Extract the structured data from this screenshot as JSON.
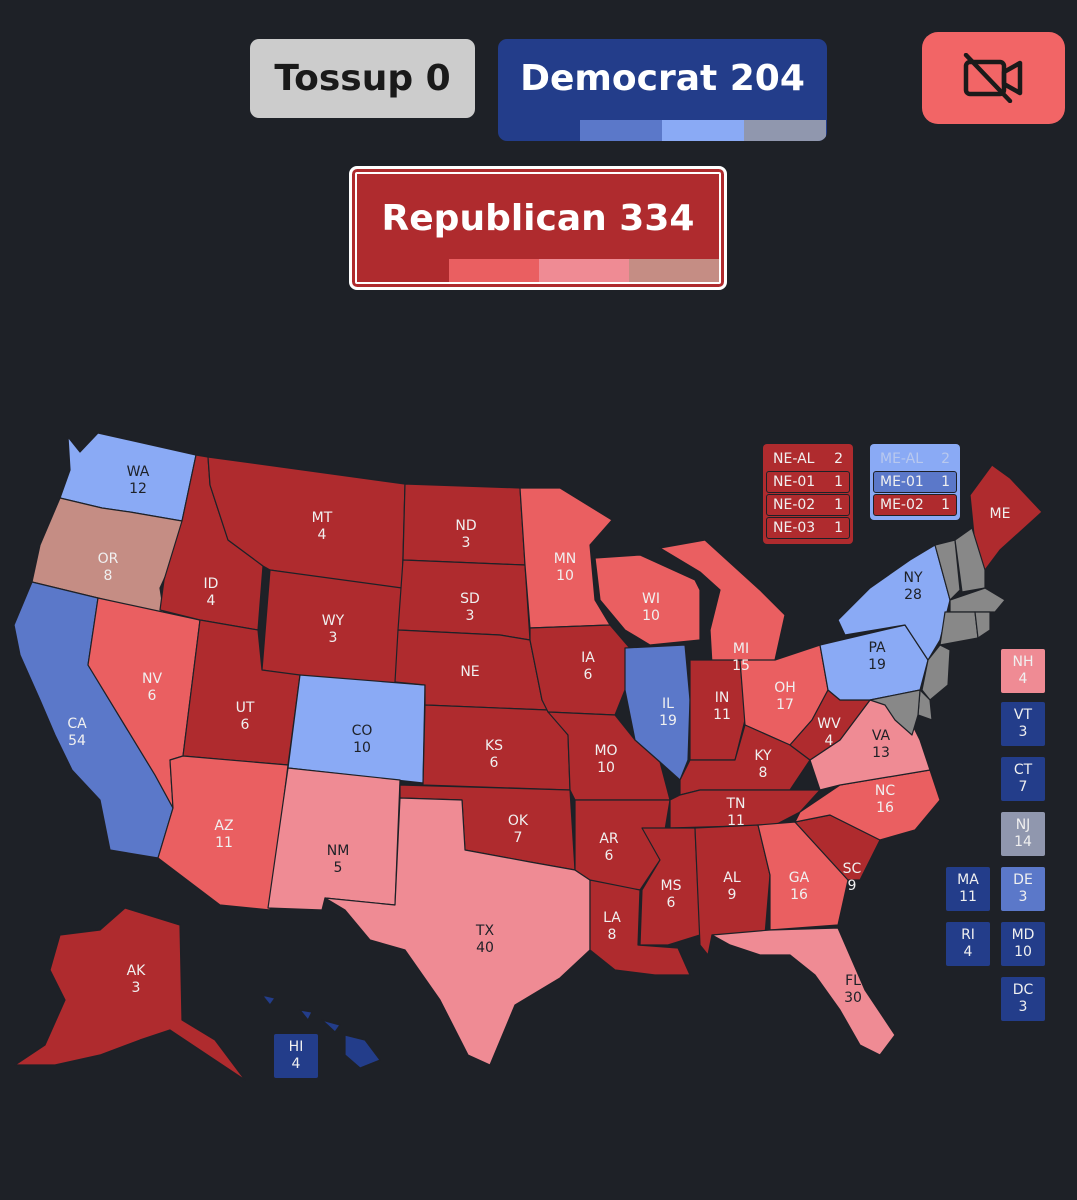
{
  "header": {
    "tossup_label": "Tossup 0",
    "democrat_label": "Democrat 204",
    "republican_label": "Republican 334",
    "camera_icon": "camera-off-icon"
  },
  "colors": {
    "background": "#1e2127",
    "tossup": "#cccccc",
    "safe_d": "#233d8a",
    "likely_d": "#5b78c9",
    "lean_d": "#8aaaf5",
    "tilt_d": "#9097ae",
    "safe_r": "#af2b2e",
    "likely_r": "#ea5f61",
    "lean_r": "#ef8b94",
    "tilt_r": "#c58d84",
    "tossup_state": "#9ca3ae"
  },
  "states": {
    "WA": {
      "label": "WA",
      "ev": "12",
      "rating": "lean_d"
    },
    "OR": {
      "label": "OR",
      "ev": "8",
      "rating": "tilt_r"
    },
    "CA": {
      "label": "CA",
      "ev": "54",
      "rating": "likely_d"
    },
    "NV": {
      "label": "NV",
      "ev": "6",
      "rating": "likely_r"
    },
    "ID": {
      "label": "ID",
      "ev": "4",
      "rating": "safe_r"
    },
    "MT": {
      "label": "MT",
      "ev": "4",
      "rating": "safe_r"
    },
    "WY": {
      "label": "WY",
      "ev": "3",
      "rating": "safe_r"
    },
    "UT": {
      "label": "UT",
      "ev": "6",
      "rating": "safe_r"
    },
    "AZ": {
      "label": "AZ",
      "ev": "11",
      "rating": "likely_r"
    },
    "CO": {
      "label": "CO",
      "ev": "10",
      "rating": "lean_d"
    },
    "NM": {
      "label": "NM",
      "ev": "5",
      "rating": "lean_r"
    },
    "ND": {
      "label": "ND",
      "ev": "3",
      "rating": "safe_r"
    },
    "SD": {
      "label": "SD",
      "ev": "3",
      "rating": "safe_r"
    },
    "NE": {
      "label": "NE",
      "ev": "",
      "rating": "safe_r"
    },
    "KS": {
      "label": "KS",
      "ev": "6",
      "rating": "safe_r"
    },
    "OK": {
      "label": "OK",
      "ev": "7",
      "rating": "safe_r"
    },
    "TX": {
      "label": "TX",
      "ev": "40",
      "rating": "lean_r"
    },
    "MN": {
      "label": "MN",
      "ev": "10",
      "rating": "likely_r"
    },
    "IA": {
      "label": "IA",
      "ev": "6",
      "rating": "safe_r"
    },
    "MO": {
      "label": "MO",
      "ev": "10",
      "rating": "safe_r"
    },
    "AR": {
      "label": "AR",
      "ev": "6",
      "rating": "safe_r"
    },
    "LA": {
      "label": "LA",
      "ev": "8",
      "rating": "safe_r"
    },
    "WI": {
      "label": "WI",
      "ev": "10",
      "rating": "likely_r"
    },
    "IL": {
      "label": "IL",
      "ev": "19",
      "rating": "likely_d"
    },
    "MI": {
      "label": "MI",
      "ev": "15",
      "rating": "likely_r"
    },
    "IN": {
      "label": "IN",
      "ev": "11",
      "rating": "safe_r"
    },
    "OH": {
      "label": "OH",
      "ev": "17",
      "rating": "likely_r"
    },
    "KY": {
      "label": "KY",
      "ev": "8",
      "rating": "safe_r"
    },
    "TN": {
      "label": "TN",
      "ev": "11",
      "rating": "safe_r"
    },
    "MS": {
      "label": "MS",
      "ev": "6",
      "rating": "safe_r"
    },
    "AL": {
      "label": "AL",
      "ev": "9",
      "rating": "safe_r"
    },
    "GA": {
      "label": "GA",
      "ev": "16",
      "rating": "likely_r"
    },
    "FL": {
      "label": "FL",
      "ev": "30",
      "rating": "lean_r"
    },
    "SC": {
      "label": "SC",
      "ev": "9",
      "rating": "safe_r"
    },
    "NC": {
      "label": "NC",
      "ev": "16",
      "rating": "likely_r"
    },
    "VA": {
      "label": "VA",
      "ev": "13",
      "rating": "lean_r"
    },
    "WV": {
      "label": "WV",
      "ev": "4",
      "rating": "safe_r"
    },
    "PA": {
      "label": "PA",
      "ev": "19",
      "rating": "lean_d"
    },
    "NY": {
      "label": "NY",
      "ev": "28",
      "rating": "lean_d"
    },
    "ME": {
      "label": "ME",
      "ev": "",
      "rating": "safe_r"
    },
    "AK": {
      "label": "AK",
      "ev": "3",
      "rating": "safe_r"
    },
    "HI": {
      "label": "HI",
      "ev": "4",
      "rating": "safe_d"
    }
  },
  "small_states": [
    {
      "label": "NH",
      "ev": "4",
      "rating": "lean_r"
    },
    {
      "label": "VT",
      "ev": "3",
      "rating": "safe_d"
    },
    {
      "label": "CT",
      "ev": "7",
      "rating": "safe_d"
    },
    {
      "label": "NJ",
      "ev": "14",
      "rating": "tilt_d"
    },
    {
      "label": "MA",
      "ev": "11",
      "rating": "safe_d"
    },
    {
      "label": "DE",
      "ev": "3",
      "rating": "likely_d"
    },
    {
      "label": "RI",
      "ev": "4",
      "rating": "safe_d"
    },
    {
      "label": "MD",
      "ev": "10",
      "rating": "safe_d"
    },
    {
      "label": "DC",
      "ev": "3",
      "rating": "safe_d"
    }
  ],
  "nebraska_districts": [
    {
      "label": "NE-AL",
      "ev": "2"
    },
    {
      "label": "NE-01",
      "ev": "1"
    },
    {
      "label": "NE-02",
      "ev": "1"
    },
    {
      "label": "NE-03",
      "ev": "1"
    }
  ],
  "maine_districts": [
    {
      "label": "ME-AL",
      "ev": "2",
      "rating": "lean_d"
    },
    {
      "label": "ME-01",
      "ev": "1",
      "rating": "likely_d"
    },
    {
      "label": "ME-02",
      "ev": "1",
      "rating": "safe_r"
    }
  ]
}
